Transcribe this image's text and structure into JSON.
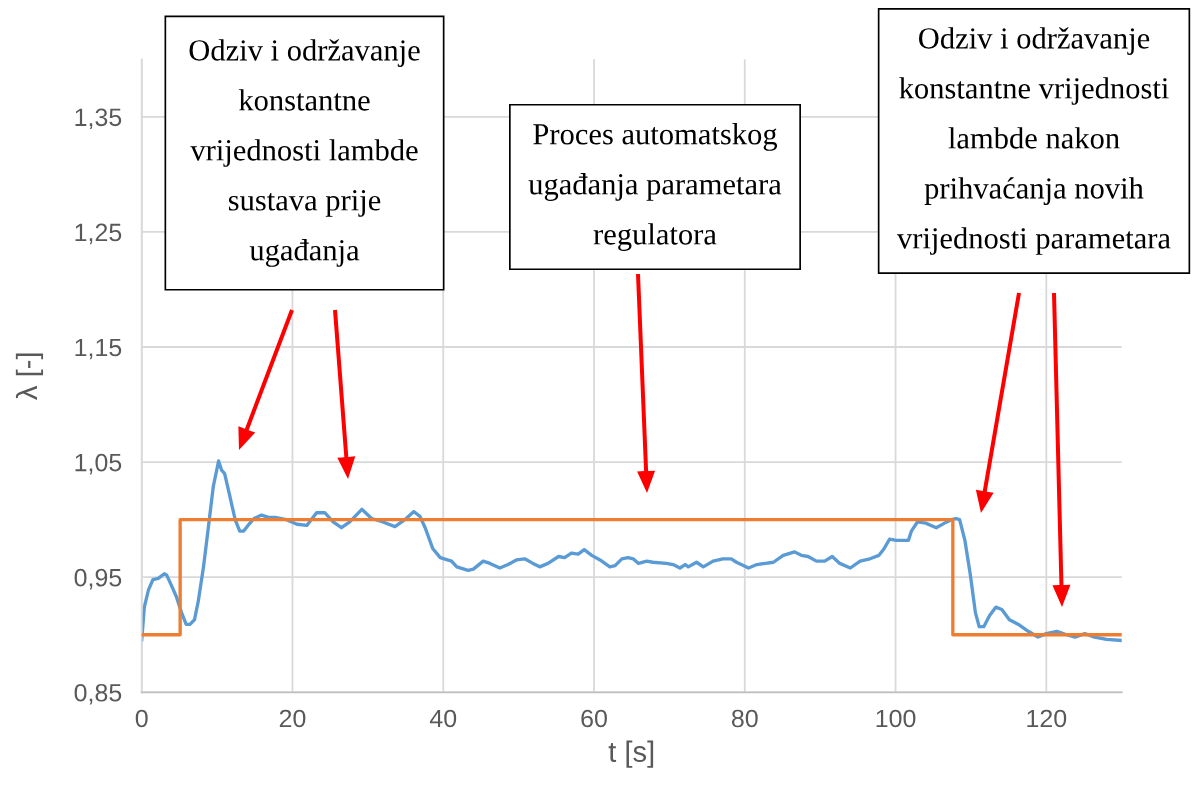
{
  "chart_data": {
    "type": "line",
    "xlabel": "t [s]",
    "ylabel": "λ [-]",
    "xlim": [
      0,
      130
    ],
    "xticks": [
      0,
      20,
      40,
      60,
      80,
      100,
      120
    ],
    "ylim": [
      0.85,
      1.4
    ],
    "yticks": [
      {
        "value": 0.85,
        "label": "0,85"
      },
      {
        "value": 0.95,
        "label": "0,95"
      },
      {
        "value": 1.05,
        "label": "1,05"
      },
      {
        "value": 1.15,
        "label": "1,15"
      },
      {
        "value": 1.25,
        "label": "1,25"
      },
      {
        "value": 1.35,
        "label": "1,35"
      }
    ],
    "grid": true,
    "series": [
      {
        "color": "#5b9bd5",
        "x": [
          0,
          0.35,
          0.9,
          1.5,
          2.2,
          3.0,
          3.3,
          4.0,
          4.6,
          5.3,
          5.9,
          6.4,
          7.0,
          7.5,
          8.2,
          8.8,
          9.5,
          10.2,
          10.6,
          11.0,
          11.6,
          12.4,
          13.0,
          13.5,
          14.1,
          14.9,
          15.9,
          16.8,
          17.7,
          19.2,
          20.6,
          21.9,
          23.2,
          24.3,
          25.4,
          26.5,
          27.6,
          29.2,
          30.5,
          32.0,
          33.6,
          34.9,
          36.1,
          36.9,
          37.6,
          38.6,
          39.6,
          41.1,
          41.8,
          43.3,
          44.0,
          45.3,
          46.2,
          47.5,
          48.6,
          49.7,
          50.8,
          51.9,
          52.8,
          53.9,
          55.3,
          56.1,
          57.0,
          57.9,
          58.7,
          59.7,
          60.8,
          62.1,
          62.8,
          63.7,
          64.5,
          65.2,
          65.9,
          67.0,
          67.8,
          69.6,
          70.5,
          71.4,
          72.1,
          72.5,
          73.6,
          74.5,
          75.8,
          77.1,
          78.2,
          78.9,
          80.5,
          81.6,
          83.8,
          85.1,
          86.6,
          87.5,
          88.4,
          89.5,
          90.6,
          91.6,
          92.6,
          94.0,
          95.3,
          96.6,
          97.8,
          98.4,
          99.2,
          100.1,
          101.7,
          102.1,
          102.9,
          104.0,
          105.4,
          106.5,
          107.4,
          108.0,
          108.5,
          109.2,
          109.9,
          110.6,
          111.1,
          111.7,
          112.5,
          113.3,
          114.1,
          115.1,
          116.3,
          117.6,
          118.9,
          120.0,
          121.4,
          122.7,
          123.8,
          125.1,
          126.4,
          128.0,
          130.0
        ],
        "values": [
          0.895,
          0.924,
          0.939,
          0.948,
          0.949,
          0.953,
          0.952,
          0.942,
          0.933,
          0.919,
          0.909,
          0.909,
          0.913,
          0.929,
          0.959,
          0.991,
          1.029,
          1.051,
          1.043,
          1.04,
          1.023,
          1.0,
          0.99,
          0.99,
          0.995,
          1.001,
          1.004,
          1.002,
          1.002,
          1.0,
          0.996,
          0.995,
          1.006,
          1.006,
          0.998,
          0.993,
          0.998,
          1.009,
          1.001,
          0.998,
          0.994,
          1.0,
          1.007,
          1.003,
          0.993,
          0.975,
          0.967,
          0.964,
          0.959,
          0.956,
          0.957,
          0.964,
          0.962,
          0.958,
          0.961,
          0.965,
          0.966,
          0.962,
          0.959,
          0.962,
          0.968,
          0.967,
          0.971,
          0.97,
          0.974,
          0.969,
          0.965,
          0.959,
          0.96,
          0.966,
          0.967,
          0.966,
          0.962,
          0.964,
          0.963,
          0.962,
          0.961,
          0.958,
          0.961,
          0.959,
          0.963,
          0.959,
          0.964,
          0.966,
          0.966,
          0.963,
          0.958,
          0.961,
          0.963,
          0.969,
          0.972,
          0.969,
          0.968,
          0.964,
          0.964,
          0.968,
          0.962,
          0.958,
          0.964,
          0.966,
          0.969,
          0.974,
          0.983,
          0.982,
          0.982,
          0.99,
          0.998,
          0.997,
          0.993,
          0.997,
          1.0,
          1.001,
          1.0,
          0.982,
          0.953,
          0.919,
          0.907,
          0.907,
          0.917,
          0.924,
          0.922,
          0.913,
          0.909,
          0.903,
          0.898,
          0.901,
          0.903,
          0.9,
          0.898,
          0.901,
          0.898,
          0.896,
          0.895
        ]
      },
      {
        "color": "#ed7d31",
        "x": [
          0,
          5.1,
          5.1,
          107.6,
          107.6,
          130
        ],
        "values": [
          0.9,
          0.9,
          1.0,
          1.0,
          0.9,
          0.9
        ]
      }
    ],
    "annotations": [
      "Odziv i održavanje\nkonstantne\nvrijednosti lambde\nsustava prije\nugađanja",
      "Proces automatskog\nugađanja parametara\nregulatora",
      "Odziv i održavanje\nkonstantne vrijednosti\nlambde nakon\nprihvaćanja novih\nvrijednosti parametara"
    ]
  }
}
